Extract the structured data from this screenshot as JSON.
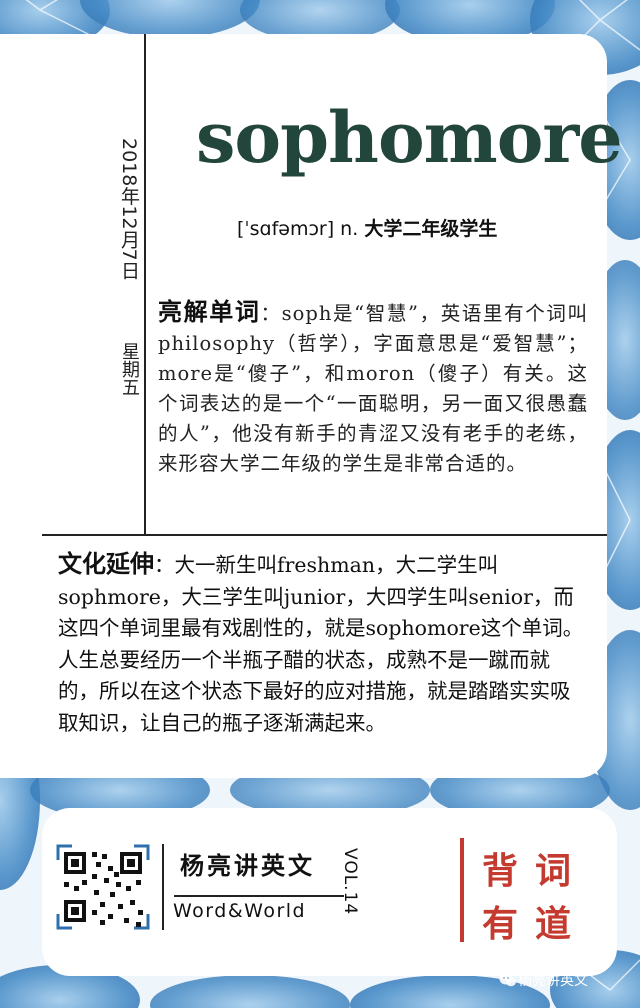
{
  "date": "2018年12月7日",
  "weekday": "星期五",
  "word": "sophomore",
  "pronunciation": "[ˈsɑfəmɔr] n.",
  "definition": "大学二年级学生",
  "explain": {
    "label": "亮解单词",
    "text": "：soph是“智慧”，英语里有个词叫philosophy（哲学），字面意思是“爱智慧”；more是“傻子”，和moron（傻子）有关。这个词表达的是一个“一面聪明，另一面又很愚蠢的人”，他没有新手的青涩又没有老手的老练，来形容大学二年级的学生是非常合适的。"
  },
  "culture": {
    "label": "文化延伸",
    "text": "：大一新生叫freshman，大二学生叫sophmore，大三学生叫junior，大四学生叫senior，而这四个单词里最有戏剧性的，就是sophomore这个单词。人生总要经历一个半瓶子醋的状态，成熟不是一蹴而就的，所以在这个状态下最好的应对措施，就是踏踏实实吸取知识，让自己的瓶子逐渐满起来。"
  },
  "footer": {
    "brand": "杨亮讲英文",
    "brand_en": "Word&World",
    "vol": "VOL.14",
    "slogan": [
      "背",
      "词",
      "有",
      "道"
    ]
  },
  "watermark": "杨亮讲英文",
  "colors": {
    "word": "#23463c",
    "accent_red": "#c43a2f",
    "watercolor_blue": "#4a90c8"
  }
}
